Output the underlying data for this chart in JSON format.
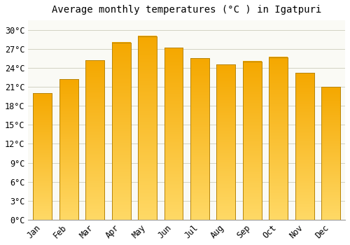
{
  "title": "Average monthly temperatures (°C ) in Igatpuri",
  "months": [
    "Jan",
    "Feb",
    "Mar",
    "Apr",
    "May",
    "Jun",
    "Jul",
    "Aug",
    "Sep",
    "Oct",
    "Nov",
    "Dec"
  ],
  "temperatures": [
    20.0,
    22.2,
    25.2,
    28.0,
    29.0,
    27.2,
    25.5,
    24.5,
    25.0,
    25.7,
    23.2,
    21.0
  ],
  "bar_color_top": "#F5A800",
  "bar_color_bottom": "#FFD966",
  "bar_edge_color": "#B8860B",
  "background_color": "#FFFFFF",
  "plot_bg_color": "#FAFAF5",
  "grid_color": "#CCCCBB",
  "y_ticks": [
    0,
    3,
    6,
    9,
    12,
    15,
    18,
    21,
    24,
    27,
    30
  ],
  "ylim": [
    0,
    31.5
  ],
  "title_fontsize": 10,
  "tick_fontsize": 8.5,
  "font_family": "monospace"
}
